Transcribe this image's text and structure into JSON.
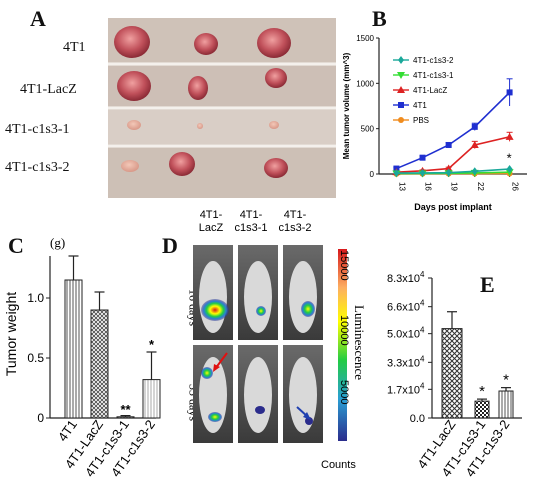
{
  "panels": {
    "a": {
      "letter": "A",
      "rows": [
        "4T1",
        "4T1-LacZ",
        "4T1-c1s3-1",
        "4T1-c1s3-2"
      ]
    },
    "b": {
      "letter": "B"
    },
    "c": {
      "letter": "C",
      "unit": "(g)"
    },
    "d": {
      "letter": "D",
      "columns": [
        "4T1-\nLacZ",
        "4T1-\nc1s3-1",
        "4T1-\nc1s3-2"
      ],
      "rows": [
        "16 days",
        "33 days"
      ],
      "scale_label": "Luminescence",
      "scale_unit": "Counts",
      "scale_ticks": [
        "15000",
        "10000",
        "5000"
      ],
      "colors": {
        "high": "#d7191c",
        "mid": "#ffff00",
        "low": "#2b2c8c"
      }
    },
    "e": {
      "letter": "E"
    }
  },
  "chart_data": [
    {
      "id": "B",
      "type": "line",
      "xlabel": "Days post implant",
      "ylabel": "Mean tumor volume (mm^3)",
      "x": [
        13,
        16,
        19,
        22,
        26
      ],
      "ylim": [
        0,
        1500
      ],
      "yticks": [
        0,
        500,
        1000,
        1500
      ],
      "legend_position": "top-left",
      "series": [
        {
          "name": "4T1-c1s3-2",
          "color": "#1aa89a",
          "marker": "diamond",
          "values": [
            10,
            12,
            15,
            30,
            55
          ]
        },
        {
          "name": "4T1-c1s3-1",
          "color": "#33dd33",
          "marker": "triangle-down",
          "values": [
            5,
            6,
            8,
            12,
            20
          ]
        },
        {
          "name": "4T1-LacZ",
          "color": "#dd2222",
          "marker": "triangle",
          "values": [
            20,
            35,
            60,
            320,
            410
          ]
        },
        {
          "name": "4T1",
          "color": "#1f2fd0",
          "marker": "square",
          "values": [
            60,
            180,
            320,
            520,
            900
          ]
        },
        {
          "name": "PBS",
          "color": "#f08c1e",
          "marker": "circle",
          "values": [
            2,
            3,
            4,
            5,
            6
          ]
        }
      ],
      "errors": {
        "4T1": [
          15,
          20,
          25,
          40,
          150
        ],
        "4T1-LacZ": [
          5,
          10,
          15,
          40,
          50
        ]
      },
      "annotation": "*"
    },
    {
      "id": "C",
      "type": "bar",
      "ylabel": "Tumor weight",
      "categories": [
        "4T1",
        "4T1-LacZ",
        "4T1-c1s3-1",
        "4T1-c1s3-2"
      ],
      "values": [
        1.15,
        0.9,
        0.01,
        0.32
      ],
      "errors": [
        0.2,
        0.15,
        0.01,
        0.23
      ],
      "ylim": [
        0,
        1.4
      ],
      "yticks": [
        "0",
        "0.5",
        "1.0"
      ],
      "annotations": [
        "",
        "",
        "**",
        "*"
      ]
    },
    {
      "id": "E",
      "type": "bar",
      "categories": [
        "4T1-LacZ",
        "4T1-c1s3-1",
        "4T1-c1s3-2"
      ],
      "values": [
        53000,
        10000,
        16000
      ],
      "errors": [
        10000,
        1200,
        2000
      ],
      "ylim": [
        0,
        83000
      ],
      "yticks": [
        {
          "v": 0,
          "label": "0.0"
        },
        {
          "v": 17000,
          "label": "1.7x10",
          "exp": "4"
        },
        {
          "v": 33000,
          "label": "3.3x10",
          "exp": "4"
        },
        {
          "v": 50000,
          "label": "5.0x10",
          "exp": "4"
        },
        {
          "v": 66000,
          "label": "6.6x10",
          "exp": "4"
        },
        {
          "v": 83000,
          "label": "8.3x10",
          "exp": "4"
        }
      ],
      "annotations": [
        "",
        "*",
        "*"
      ]
    }
  ]
}
